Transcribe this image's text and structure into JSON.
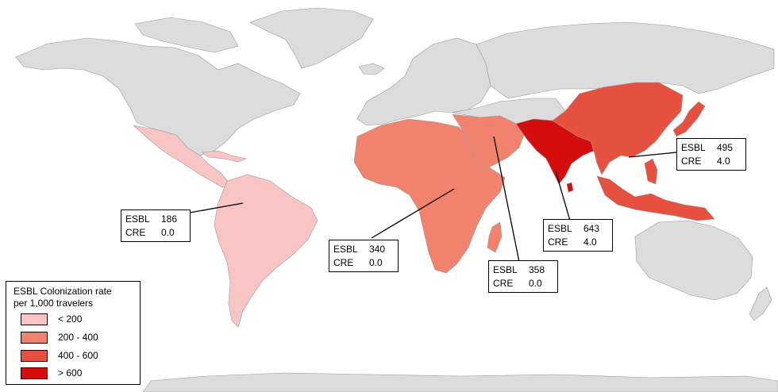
{
  "colors": {
    "ocean": "#ffffff",
    "no_data_land": "#dcdcdc",
    "border": "#9a9a9a",
    "lt200": "#f9c5c4",
    "r200_400": "#f1826e",
    "r400_600": "#e6513f",
    "gt600": "#d60d0d"
  },
  "legend": {
    "title_line1": "ESBL Colonization rate",
    "title_line2": "per 1,000 travelers",
    "items": [
      {
        "label": "< 200",
        "color": "#f9c5c4"
      },
      {
        "label": "200 - 400",
        "color": "#f1826e"
      },
      {
        "label": "400 - 600",
        "color": "#e6513f"
      },
      {
        "label": "> 600",
        "color": "#d60d0d"
      }
    ]
  },
  "callouts": {
    "south_america": {
      "esbl_label": "ESBL",
      "esbl_value": "186",
      "cre_label": "CRE",
      "cre_value": "0.0"
    },
    "africa": {
      "esbl_label": "ESBL",
      "esbl_value": "340",
      "cre_label": "CRE",
      "cre_value": "0.0"
    },
    "middle_east": {
      "esbl_label": "ESBL",
      "esbl_value": "358",
      "cre_label": "CRE",
      "cre_value": "0.0"
    },
    "south_asia": {
      "esbl_label": "ESBL",
      "esbl_value": "643",
      "cre_label": "CRE",
      "cre_value": "4.0"
    },
    "east_asia": {
      "esbl_label": "ESBL",
      "esbl_value": "495",
      "cre_label": "CRE",
      "cre_value": "4.0"
    }
  }
}
